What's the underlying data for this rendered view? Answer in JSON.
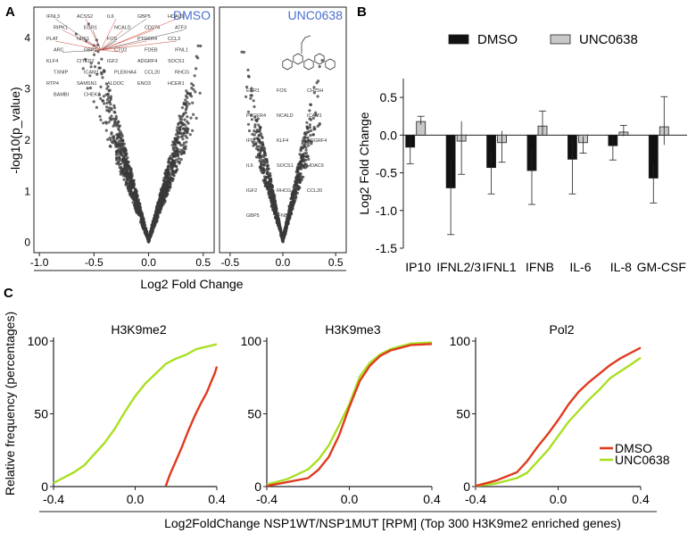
{
  "panels": {
    "A": "A",
    "B": "B",
    "C": "C"
  },
  "chart_data": [
    {
      "id": "volcano",
      "type": "scatter",
      "panel": "A",
      "xlabel": "Log2 Fold Change",
      "ylabel": "-log10(p_value)",
      "subplots": [
        {
          "name": "DMSO",
          "title": "DMSO",
          "xlim": [
            -1.05,
            0.6
          ],
          "ylim": [
            -0.2,
            4.6
          ],
          "xticks": [
            -1.0,
            -0.5,
            0.0,
            0.5
          ],
          "xticklabels": [
            "-1.0",
            "-0.5",
            "0.0",
            "0.5"
          ],
          "yticks": [
            0,
            1,
            2,
            3,
            4
          ],
          "yticklabels": [
            "0",
            "1",
            "2",
            "3",
            "4"
          ],
          "gene_labels": [
            "IFNL3",
            "ACSS2",
            "IL6",
            "GBP5",
            "HDAC9",
            "RIPK1",
            "EGR1",
            "NCALD",
            "CD274",
            "ATF3",
            "PLAT",
            "NRF1",
            "FOS",
            "PTGER4",
            "CCL3",
            "ARC",
            "GBP1",
            "CTU2",
            "FDEB",
            "IFNL1",
            "KLF4",
            "CITED2",
            "IGF2",
            "ADGRF4",
            "SOCS1",
            "TXNIP",
            "ICAM1",
            "PLEKHA4",
            "CCL20",
            "RHCG",
            "RTP4",
            "SAMSN1",
            "ALDOC",
            "ENO3",
            "HCER1",
            "BAMBI",
            "CHEK2"
          ]
        },
        {
          "name": "UNC0638",
          "title": "UNC0638",
          "xlim": [
            -0.6,
            0.6
          ],
          "ylim": [
            -0.2,
            4.6
          ],
          "xticks": [
            -0.5,
            0.0,
            0.5
          ],
          "xticklabels": [
            "-0.5",
            "0.0",
            "0.5"
          ],
          "gene_labels": [
            "EGR1",
            "FOS",
            "CHZ5H",
            "PTGER4",
            "NCALD",
            "ICAM1",
            "IFNL3",
            "KLF4",
            "ADGRF4",
            "IL6",
            "SOCS1",
            "HDAC9",
            "IGF2",
            "RHCG",
            "CCL20",
            "GBP5",
            "IFNB1"
          ]
        }
      ]
    },
    {
      "id": "bars",
      "type": "bar",
      "panel": "B",
      "ylabel": "Log2 Fold Change",
      "ylim": [
        -1.5,
        0.75
      ],
      "yticks": [
        -1.5,
        -1.0,
        -0.5,
        0.0,
        0.5
      ],
      "yticklabels": [
        "-1.5",
        "-1.0",
        "-0.5",
        "0.0",
        "0.5"
      ],
      "categories": [
        "IP10",
        "IFNL2/3",
        "IFNL1",
        "IFNB",
        "IL-6",
        "IL-8",
        "GM-CSF"
      ],
      "series": [
        {
          "name": "DMSO",
          "color": "#111111",
          "values": [
            -0.16,
            -0.7,
            -0.43,
            -0.47,
            -0.32,
            -0.14,
            -0.57
          ],
          "errors": [
            0.22,
            0.62,
            0.35,
            0.45,
            0.46,
            0.19,
            0.33
          ]
        },
        {
          "name": "UNC0638",
          "color": "#c8c8c8",
          "values": [
            0.18,
            -0.08,
            -0.1,
            0.12,
            -0.1,
            0.04,
            0.11
          ],
          "errors": [
            0.07,
            0.44,
            0.26,
            0.2,
            0.14,
            0.09,
            0.4
          ]
        }
      ]
    },
    {
      "id": "cdf",
      "type": "line",
      "panel": "C",
      "ylabel": "Relative frequency (percentages)",
      "xlabel": "Log2FoldChange NSP1WT/NSP1MUT [RPM] (Top 300 H3K9me2 enriched genes)",
      "xlim": [
        -0.4,
        0.4
      ],
      "ylim": [
        0,
        100
      ],
      "xticks": [
        -0.4,
        0.0,
        0.4
      ],
      "xticklabels": [
        "-0.4",
        "0.0",
        "0.4"
      ],
      "yticks": [
        0,
        50,
        100
      ],
      "yticklabels": [
        "0",
        "50",
        "100"
      ],
      "legend": {
        "position": "right",
        "entries": [
          {
            "name": "DMSO",
            "color": "#e03a1e"
          },
          {
            "name": "UNC0638",
            "color": "#a8e020"
          }
        ]
      },
      "subplots": [
        {
          "name": "H3K9me2",
          "title": "H3K9me2",
          "series": [
            {
              "name": "DMSO",
              "color": "#e03a1e",
              "x": [
                0.15,
                0.17,
                0.2,
                0.23,
                0.26,
                0.29,
                0.32,
                0.35,
                0.37,
                0.39,
                0.4
              ],
              "y": [
                0,
                8,
                18,
                28,
                38,
                48,
                57,
                64,
                71,
                78,
                83
              ]
            },
            {
              "name": "UNC0638",
              "color": "#a8e020",
              "x": [
                -0.4,
                -0.35,
                -0.3,
                -0.25,
                -0.2,
                -0.15,
                -0.1,
                -0.05,
                0.0,
                0.05,
                0.1,
                0.15,
                0.2,
                0.25,
                0.3,
                0.35,
                0.4
              ],
              "y": [
                2,
                6,
                10,
                15,
                22,
                30,
                40,
                51,
                62,
                71,
                78,
                84,
                88,
                91,
                94,
                96,
                98
              ]
            }
          ]
        },
        {
          "name": "H3K9me3",
          "title": "H3K9me3",
          "series": [
            {
              "name": "DMSO",
              "color": "#e03a1e",
              "x": [
                -0.4,
                -0.3,
                -0.2,
                -0.15,
                -0.1,
                -0.05,
                0.0,
                0.05,
                0.1,
                0.15,
                0.2,
                0.3,
                0.4
              ],
              "y": [
                0,
                3,
                6,
                12,
                20,
                35,
                55,
                72,
                83,
                90,
                94,
                97,
                98
              ]
            },
            {
              "name": "UNC0638",
              "color": "#a8e020",
              "x": [
                -0.4,
                -0.3,
                -0.2,
                -0.15,
                -0.1,
                -0.05,
                0.0,
                0.05,
                0.1,
                0.15,
                0.2,
                0.3,
                0.4
              ],
              "y": [
                1,
                5,
                12,
                19,
                28,
                42,
                57,
                75,
                85,
                91,
                95,
                98,
                99
              ]
            }
          ]
        },
        {
          "name": "Pol2",
          "title": "Pol2",
          "series": [
            {
              "name": "DMSO",
              "color": "#e03a1e",
              "x": [
                -0.4,
                -0.3,
                -0.2,
                -0.15,
                -0.1,
                -0.05,
                0.0,
                0.05,
                0.1,
                0.15,
                0.2,
                0.25,
                0.3,
                0.35,
                0.4
              ],
              "y": [
                0,
                4,
                10,
                18,
                27,
                36,
                46,
                56,
                65,
                72,
                78,
                83,
                88,
                92,
                95
              ]
            },
            {
              "name": "UNC0638",
              "color": "#a8e020",
              "x": [
                -0.4,
                -0.3,
                -0.2,
                -0.15,
                -0.1,
                -0.05,
                0.0,
                0.05,
                0.1,
                0.15,
                0.2,
                0.25,
                0.3,
                0.35,
                0.4
              ],
              "y": [
                0,
                2,
                6,
                10,
                17,
                25,
                35,
                44,
                52,
                60,
                67,
                74,
                79,
                84,
                88
              ]
            }
          ]
        }
      ]
    }
  ]
}
